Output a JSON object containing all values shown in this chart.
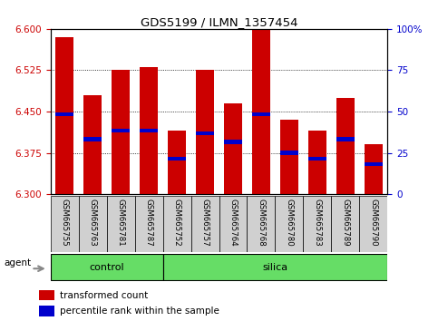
{
  "title": "GDS5199 / ILMN_1357454",
  "samples": [
    "GSM665755",
    "GSM665763",
    "GSM665781",
    "GSM665787",
    "GSM665752",
    "GSM665757",
    "GSM665764",
    "GSM665768",
    "GSM665780",
    "GSM665783",
    "GSM665789",
    "GSM665790"
  ],
  "bar_tops": [
    6.585,
    6.48,
    6.525,
    6.53,
    6.415,
    6.525,
    6.465,
    6.605,
    6.435,
    6.415,
    6.475,
    6.39
  ],
  "bar_bottoms": [
    6.3,
    6.3,
    6.3,
    6.3,
    6.3,
    6.3,
    6.3,
    6.3,
    6.3,
    6.3,
    6.3,
    6.3
  ],
  "percentile_values": [
    6.445,
    6.4,
    6.415,
    6.415,
    6.365,
    6.41,
    6.395,
    6.445,
    6.375,
    6.365,
    6.4,
    6.355
  ],
  "ylim": [
    6.3,
    6.6
  ],
  "yticks_left": [
    6.3,
    6.375,
    6.45,
    6.525,
    6.6
  ],
  "yticks_right_labels": [
    "0",
    "25",
    "50",
    "75",
    "100%"
  ],
  "yticks_right_values": [
    6.3,
    6.375,
    6.45,
    6.525,
    6.6
  ],
  "bar_color": "#cc0000",
  "percentile_color": "#0000cc",
  "group_color": "#66dd66",
  "agent_label": "agent",
  "bg_color": "#ffffff",
  "legend_bar_label": "transformed count",
  "legend_pct_label": "percentile rank within the sample",
  "ylabel_left_color": "#cc0000",
  "ylabel_right_color": "#0000cc",
  "xlabel_bg": "#cccccc",
  "n_control": 4,
  "n_total": 12
}
